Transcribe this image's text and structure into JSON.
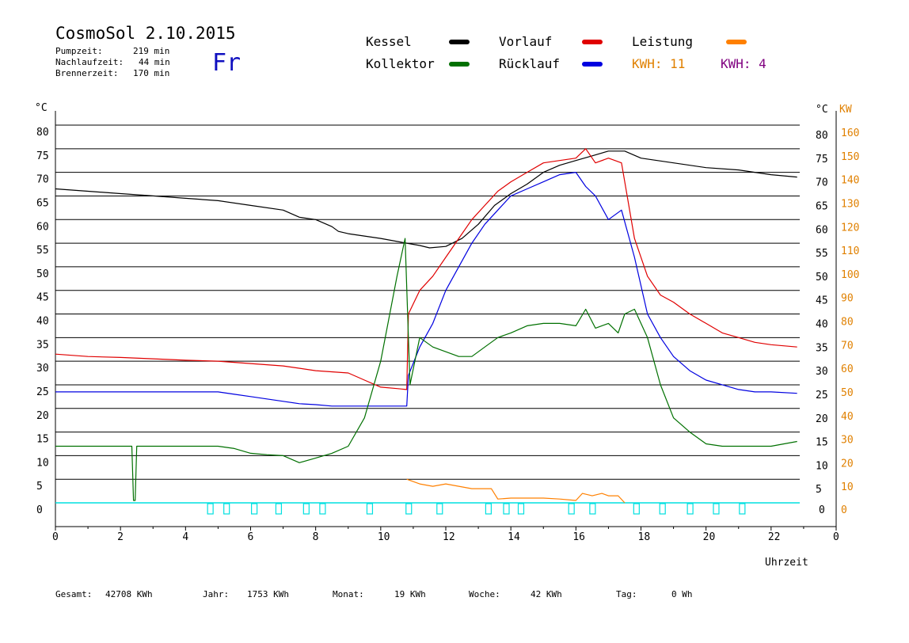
{
  "header": {
    "title": "CosmoSol 2.10.2015",
    "day": "Fr",
    "stats": [
      {
        "label": "Pumpzeit:",
        "value": "219 min"
      },
      {
        "label": "Nachlaufzeit:",
        "value": "44 min"
      },
      {
        "label": "Brennerzeit:",
        "value": "170 min"
      }
    ]
  },
  "legend": {
    "kessel": "Kessel",
    "kollektor": "Kollektor",
    "vorlauf": "Vorlauf",
    "ruecklauf": "Rücklauf",
    "leistung": "Leistung",
    "kwh_orange": "KWH: 11",
    "kwh_purple": "KWH: 4"
  },
  "footer": {
    "gesamt_label": "Gesamt:",
    "gesamt_value": "42708 KWh",
    "jahr_label": "Jahr:",
    "jahr_value": "1753 KWh",
    "monat_label": "Monat:",
    "monat_value": "19 KWh",
    "woche_label": "Woche:",
    "woche_value": "42 KWh",
    "tag_label": "Tag:",
    "tag_value": "0 Wh"
  },
  "colors": {
    "kessel": "#000000",
    "kollektor": "#007000",
    "vorlauf": "#e00000",
    "ruecklauf": "#0000e0",
    "leistung": "#ff8000",
    "kwh_purple": "#800080",
    "pump": "#00e0e0",
    "axis_right_kw": "#e08000",
    "day": "#1010c0"
  },
  "chart_data": {
    "type": "line",
    "xlabel": "Uhrzeit",
    "ylabel_left": "°C",
    "ylabel_right": "°C",
    "ylabel_right2": "KW",
    "xlim": [
      0,
      24
    ],
    "ylim": [
      0,
      80
    ],
    "ylim_kw": [
      0,
      160
    ],
    "x_ticks": [
      "0",
      "2",
      "4",
      "6",
      "8",
      "10",
      "12",
      "14",
      "16",
      "18",
      "20",
      "22",
      "0"
    ],
    "y_ticks": [
      0,
      5,
      10,
      15,
      20,
      25,
      30,
      35,
      40,
      45,
      50,
      55,
      60,
      65,
      70,
      75,
      80
    ],
    "kw_ticks": [
      0,
      10,
      20,
      30,
      40,
      50,
      60,
      70,
      80,
      90,
      100,
      110,
      120,
      130,
      140,
      150,
      160
    ],
    "grid": true,
    "series": [
      {
        "name": "Kessel",
        "color": "#000000",
        "x": [
          0,
          1,
          2,
          3,
          4,
          5,
          6,
          7,
          7.5,
          8,
          8.5,
          8.7,
          9,
          10,
          10.8,
          11.2,
          11.5,
          12,
          12.5,
          13,
          13.5,
          14,
          14.5,
          15,
          15.5,
          16,
          16.5,
          17,
          17.5,
          18,
          19,
          20,
          21,
          22,
          22.8
        ],
        "y": [
          66.5,
          66,
          65.5,
          65,
          64.5,
          64,
          63,
          62,
          60.5,
          60,
          58.5,
          57.5,
          57,
          56,
          55,
          54.5,
          54,
          54.3,
          56,
          59,
          63,
          65.5,
          67.5,
          70,
          71.5,
          72.5,
          73.5,
          74.5,
          74.5,
          73,
          72,
          71,
          70.5,
          69.5,
          69
        ]
      },
      {
        "name": "Vorlauf",
        "color": "#e00000",
        "x": [
          0,
          1,
          2,
          3,
          4,
          5,
          6,
          7,
          8,
          9,
          9.5,
          10,
          10.5,
          10.8,
          10.85,
          11.2,
          11.6,
          12,
          12.4,
          12.8,
          13.2,
          13.6,
          14,
          14.5,
          15,
          15.5,
          16,
          16.3,
          16.6,
          17,
          17.4,
          17.8,
          18.2,
          18.6,
          19,
          19.5,
          20,
          20.5,
          21,
          21.5,
          22,
          22.8
        ],
        "y": [
          31.5,
          31,
          30.8,
          30.5,
          30.2,
          30,
          29.5,
          29,
          28,
          27.5,
          26,
          24.5,
          24.2,
          24,
          40,
          45,
          48,
          52,
          56,
          60,
          63,
          66,
          68,
          70,
          72,
          72.5,
          73,
          75,
          72,
          73,
          72,
          56,
          48,
          44,
          42.5,
          40,
          38,
          36,
          35,
          34,
          33.5,
          33
        ]
      },
      {
        "name": "Rücklauf",
        "color": "#0000e0",
        "x": [
          0,
          1,
          2,
          3,
          4,
          5,
          5.5,
          6,
          6.5,
          7,
          7.5,
          8,
          8.5,
          9,
          10,
          10.8,
          10.85,
          11.2,
          11.6,
          12,
          12.4,
          12.8,
          13.2,
          13.6,
          14,
          14.5,
          15,
          15.5,
          16,
          16.3,
          16.6,
          17,
          17.4,
          17.8,
          18.2,
          18.6,
          19,
          19.5,
          20,
          20.5,
          21,
          21.5,
          22,
          22.8
        ],
        "y": [
          23.5,
          23.5,
          23.5,
          23.5,
          23.5,
          23.5,
          23,
          22.5,
          22,
          21.5,
          21,
          20.8,
          20.5,
          20.5,
          20.5,
          20.5,
          27,
          33,
          38,
          45,
          50,
          55,
          59,
          62,
          65,
          66.5,
          68,
          69.5,
          70,
          67,
          65,
          60,
          62,
          52,
          40,
          35,
          31,
          28,
          26,
          25,
          24,
          23.5,
          23.5,
          23.2
        ]
      },
      {
        "name": "Kollektor",
        "color": "#007000",
        "x": [
          0,
          1,
          2,
          2.35,
          2.4,
          2.45,
          2.5,
          3,
          4,
          5,
          5.5,
          6,
          6.5,
          7,
          7.5,
          8,
          8.5,
          9,
          9.5,
          10,
          10.5,
          10.75,
          10.9,
          11.2,
          11.6,
          12,
          12.4,
          12.8,
          13.2,
          13.6,
          14,
          14.5,
          15,
          15.5,
          16,
          16.3,
          16.6,
          17,
          17.3,
          17.5,
          17.8,
          18.2,
          18.6,
          19,
          19.5,
          20,
          20.5,
          21,
          21.5,
          22,
          22.8
        ],
        "y": [
          12,
          12,
          12,
          12,
          0.5,
          0.5,
          12,
          12,
          12,
          12,
          11.5,
          10.5,
          10.2,
          10,
          8.5,
          9.5,
          10.5,
          12,
          18,
          30,
          48,
          56,
          25,
          35,
          33,
          32,
          31,
          31,
          33,
          35,
          36,
          37.5,
          38,
          38,
          37.5,
          41,
          37,
          38,
          36,
          40,
          41,
          35,
          25,
          18,
          15,
          12.5,
          12,
          12,
          12,
          12,
          13
        ]
      },
      {
        "name": "Leistung",
        "color": "#ff8000",
        "x": [
          10.8,
          11.2,
          11.6,
          12,
          12.4,
          12.8,
          13.2,
          13.4,
          13.6,
          14,
          14.5,
          15,
          15.5,
          16,
          16.2,
          16.5,
          16.8,
          17,
          17.3,
          17.5
        ],
        "y": [
          5,
          4,
          3.5,
          4,
          3.5,
          3,
          3,
          3,
          0.8,
          1,
          1,
          1,
          0.8,
          0.5,
          2,
          1.5,
          2,
          1.5,
          1.5,
          0
        ]
      }
    ],
    "pump_marks": [
      4.75,
      5.25,
      6.1,
      6.85,
      7.7,
      8.2,
      9.65,
      10.85,
      11.8,
      13.3,
      13.85,
      14.3,
      15.85,
      16.5,
      17.85,
      18.65,
      19.5,
      20.3,
      21.1
    ]
  }
}
